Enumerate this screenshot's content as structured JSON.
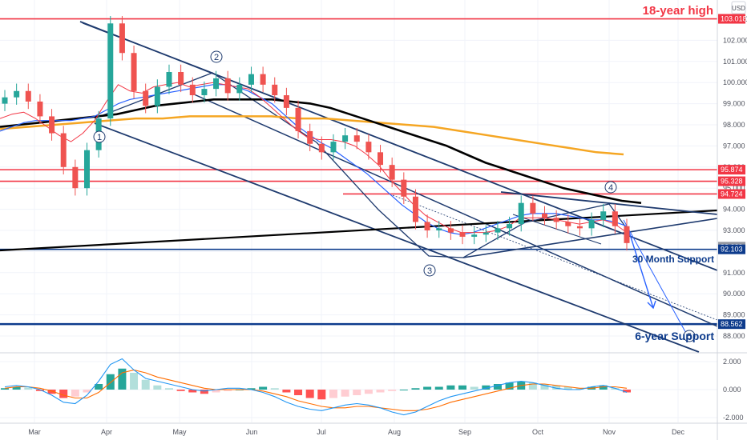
{
  "chart_data": [
    {
      "type": "candlestick",
      "title": "",
      "currency": "USD",
      "xlabel": "",
      "ylabel": "",
      "ylim": [
        87.0,
        103.5
      ],
      "x_tick_labels": [
        "Mar",
        "Apr",
        "May",
        "Jun",
        "Jul",
        "Aug",
        "Sep",
        "Oct",
        "Nov",
        "Dec"
      ],
      "y_tick_labels": [
        "103.000",
        "102.000",
        "101.000",
        "100.000",
        "99.000",
        "98.000",
        "97.000",
        "96.000",
        "95.000",
        "94.000",
        "93.000",
        "92.000",
        "91.000",
        "90.000",
        "89.000",
        "88.000"
      ],
      "y_tick_values": [
        103,
        102,
        101,
        100,
        99,
        98,
        97,
        96,
        95,
        94,
        93,
        92,
        91,
        90,
        89,
        88
      ],
      "price_tags": [
        {
          "value": 103.018,
          "label": "103.018",
          "color": "#f23645"
        },
        {
          "value": 95.874,
          "label": "95.874",
          "color": "#f23645"
        },
        {
          "value": 95.328,
          "label": "95.328",
          "color": "#f23645"
        },
        {
          "value": 94.724,
          "label": "94.724",
          "color": "#f23645"
        },
        {
          "value": 92.229,
          "label": "92.229",
          "color": "#9598a1"
        },
        {
          "value": 92.103,
          "label": "92.103",
          "color": "#0d3b8c"
        },
        {
          "value": 88.562,
          "label": "88.562",
          "color": "#0d3b8c"
        }
      ],
      "horizontal_levels": [
        {
          "value": 103.018,
          "color": "#f23645"
        },
        {
          "value": 95.874,
          "color": "#f23645"
        },
        {
          "value": 95.328,
          "color": "#f23645"
        },
        {
          "value": 94.724,
          "color": "#f23645"
        },
        {
          "value": 92.103,
          "color": "#0d3b8c"
        },
        {
          "value": 88.562,
          "color": "#0d3b8c"
        }
      ],
      "annotations": [
        "18-year high",
        "30 Month Support",
        "6-year Support"
      ],
      "wave_labels": [
        "1",
        "2",
        "3",
        "4",
        "5"
      ],
      "series": [
        {
          "name": "price",
          "kind": "candles",
          "close": [
            99.3,
            99.6,
            99.1,
            98.4,
            97.6,
            96.0,
            95.0,
            96.8,
            98.3,
            102.8,
            101.4,
            99.6,
            98.9,
            99.8,
            100.5,
            99.9,
            99.4,
            99.7,
            100.2,
            99.5,
            99.9,
            100.4,
            99.9,
            99.4,
            98.8,
            97.7,
            97.1,
            96.7,
            97.2,
            97.5,
            97.2,
            96.7,
            96.1,
            95.4,
            94.6,
            93.4,
            93.0,
            93.1,
            92.9,
            92.7,
            92.8,
            92.9,
            93.1,
            93.3,
            94.3,
            93.8,
            93.6,
            93.4,
            93.2,
            93.1,
            93.5,
            93.9,
            93.2,
            92.4
          ]
        },
        {
          "name": "fast-ma",
          "kind": "line",
          "color": "#f23645",
          "values": [
            98.3,
            98.5,
            98.6,
            98.3,
            97.9,
            97.5,
            97.2,
            97.6,
            98.2,
            99.1,
            99.9,
            99.6,
            99.5,
            99.8,
            99.9,
            100.0,
            99.8,
            99.9,
            100.0,
            99.9,
            99.8,
            99.7,
            99.3,
            98.8,
            98.3,
            97.8,
            97.4,
            97.3,
            97.3,
            97.2,
            97.0,
            96.6,
            96.1,
            95.4,
            94.8,
            94.2,
            93.7,
            93.4,
            93.1,
            92.9,
            92.9,
            92.9,
            93.0,
            93.2,
            93.6,
            93.6,
            93.6,
            93.5,
            93.4,
            93.3,
            93.4,
            93.5,
            93.3,
            92.9
          ]
        },
        {
          "name": "slow-ma",
          "kind": "line",
          "color": "#2962ff",
          "values": [
            97.7,
            97.9,
            98.1,
            98.2,
            98.2,
            98.2,
            98.2,
            98.3,
            98.4,
            98.7,
            99.0,
            99.2,
            99.3,
            99.4,
            99.5,
            99.6,
            99.7,
            99.8,
            99.9,
            99.9,
            99.8,
            99.6,
            99.3,
            99.0,
            98.5,
            98.0,
            97.6,
            97.2,
            96.9,
            96.5,
            96.1,
            95.7,
            95.2,
            94.7,
            94.2,
            93.8,
            93.4,
            93.1,
            92.9,
            92.8,
            92.9,
            93.1,
            93.3,
            93.5,
            93.7,
            93.8,
            93.8,
            93.8,
            93.7,
            93.6,
            93.5,
            93.5,
            93.4,
            93.2
          ]
        },
        {
          "name": "long-ma-black",
          "kind": "line",
          "color": "#000000",
          "values": [
            97.9,
            98.0,
            98.1,
            98.2,
            98.3,
            98.4,
            98.5,
            98.7,
            98.9,
            99.0,
            99.1,
            99.2,
            99.2,
            99.2,
            99.2,
            99.1,
            99.0,
            98.8,
            98.5,
            98.2,
            97.9,
            97.6,
            97.3,
            97.0,
            96.6,
            96.2,
            95.9,
            95.6,
            95.3,
            95.0,
            94.8,
            94.6,
            94.4,
            94.3
          ]
        },
        {
          "name": "long-ma-orange",
          "kind": "line",
          "color": "#f5a623",
          "values": [
            97.8,
            97.9,
            98.0,
            98.1,
            98.2,
            98.3,
            98.3,
            98.4,
            98.4,
            98.4,
            98.4,
            98.3,
            98.3,
            98.2,
            98.1,
            98.0,
            97.9,
            97.7,
            97.5,
            97.3,
            97.1,
            96.9,
            96.7,
            96.6
          ]
        }
      ]
    },
    {
      "type": "histogram-oscillator",
      "ylim": [
        -2.2,
        2.2
      ],
      "y_tick_labels": [
        "2.000",
        "0.000",
        "-2.000"
      ],
      "y_tick_values": [
        2,
        0,
        -2
      ],
      "histogram": [
        0.1,
        0.2,
        0.15,
        -0.1,
        -0.3,
        -0.6,
        -0.5,
        -0.2,
        0.4,
        1.1,
        1.5,
        1.2,
        0.7,
        0.3,
        0.1,
        -0.1,
        -0.2,
        -0.3,
        -0.2,
        -0.1,
        0.0,
        0.1,
        0.2,
        0.1,
        -0.2,
        -0.4,
        -0.6,
        -0.7,
        -0.6,
        -0.5,
        -0.4,
        -0.3,
        -0.2,
        -0.1,
        0.0,
        0.1,
        0.2,
        0.2,
        0.3,
        0.3,
        0.2,
        0.3,
        0.4,
        0.5,
        0.6,
        0.5,
        0.4,
        0.3,
        0.2,
        0.1,
        0.2,
        0.3,
        0.1,
        -0.2
      ],
      "macd": [
        0.2,
        0.3,
        0.2,
        0.0,
        -0.4,
        -0.9,
        -1.0,
        -0.4,
        0.6,
        1.8,
        2.2,
        1.4,
        0.8,
        0.6,
        0.4,
        0.2,
        0.0,
        -0.1,
        0.0,
        0.1,
        0.1,
        0.0,
        -0.2,
        -0.5,
        -0.9,
        -1.2,
        -1.4,
        -1.5,
        -1.3,
        -1.1,
        -1.0,
        -1.1,
        -1.3,
        -1.6,
        -1.8,
        -1.6,
        -1.2,
        -0.8,
        -0.5,
        -0.3,
        -0.1,
        0.1,
        0.3,
        0.5,
        0.6,
        0.5,
        0.3,
        0.1,
        0.0,
        0.0,
        0.2,
        0.3,
        0.1,
        -0.2
      ],
      "signal": [
        0.1,
        0.2,
        0.2,
        0.1,
        -0.1,
        -0.4,
        -0.6,
        -0.6,
        -0.2,
        0.5,
        1.2,
        1.4,
        1.2,
        0.9,
        0.7,
        0.5,
        0.3,
        0.1,
        0.0,
        0.0,
        0.0,
        0.0,
        -0.1,
        -0.3,
        -0.5,
        -0.8,
        -1.0,
        -1.2,
        -1.3,
        -1.3,
        -1.2,
        -1.2,
        -1.3,
        -1.4,
        -1.5,
        -1.5,
        -1.4,
        -1.2,
        -0.9,
        -0.7,
        -0.5,
        -0.3,
        -0.1,
        0.1,
        0.3,
        0.4,
        0.4,
        0.3,
        0.2,
        0.1,
        0.1,
        0.2,
        0.2,
        0.1
      ]
    }
  ],
  "colors": {
    "bull": "#26a69a",
    "bear": "#ef5350",
    "annotation_red": "#f23645",
    "annotation_blue": "#0d3b8c",
    "trendline_navy": "#1e3a6e",
    "ma_blue": "#2962ff",
    "ma_black": "#000000",
    "ma_orange": "#f5a623",
    "macd_line": "#2196f3",
    "signal_line": "#ff6d00",
    "hist_pos_strong": "#26a69a",
    "hist_pos_weak": "#b2dfdb",
    "hist_neg_strong": "#ff5252",
    "hist_neg_weak": "#ffcdd2"
  }
}
